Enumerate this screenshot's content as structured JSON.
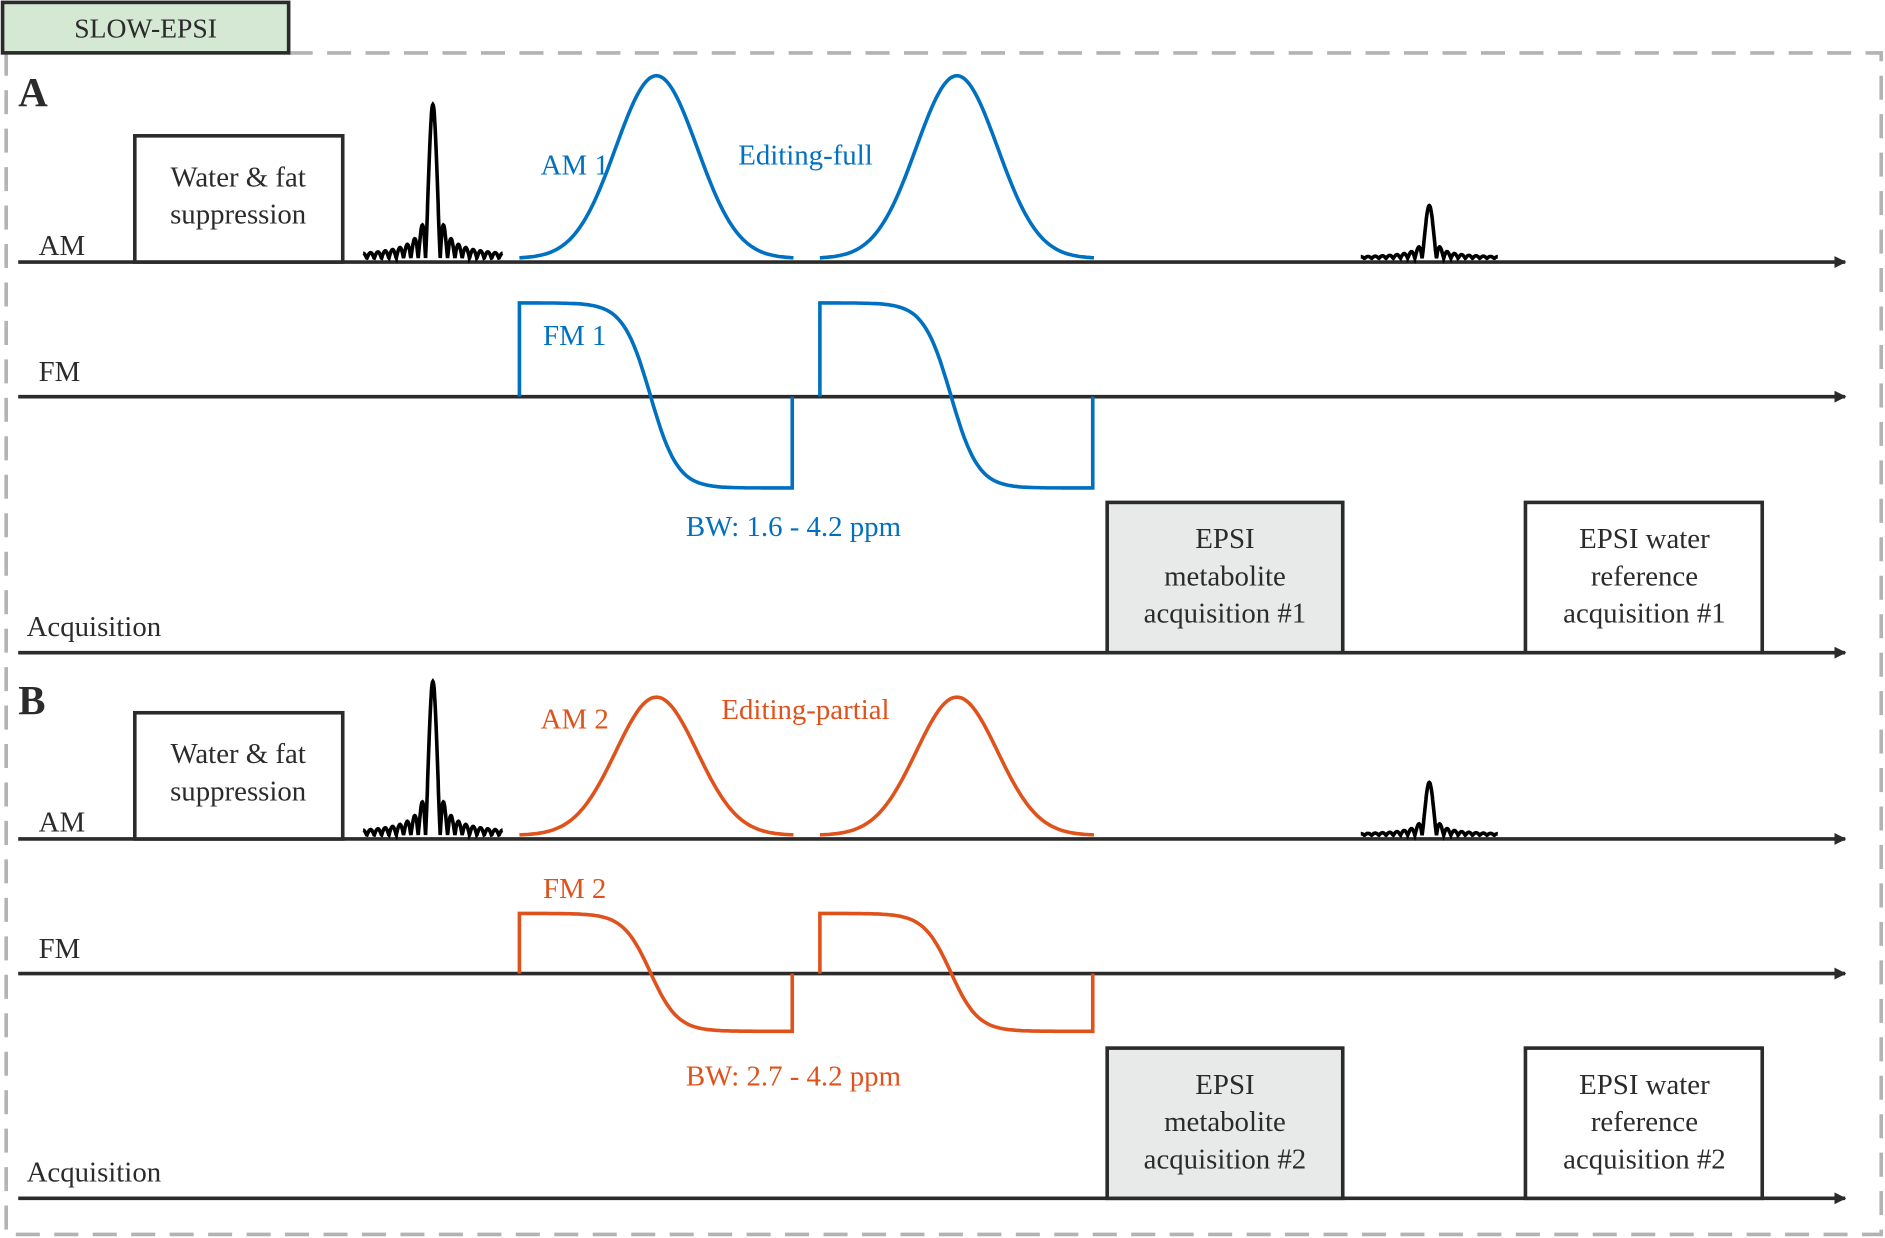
{
  "title": "SLOW-EPSI",
  "colors": {
    "title_fill": "#d5e8d4",
    "editing_full": "#0070c0",
    "editing_partial": "#e0521b",
    "black": "#000000",
    "metabolite_box": "#e8eaea",
    "border": "#b3b3b3"
  },
  "panels": [
    {
      "label": "A",
      "row_labels": {
        "am": "AM",
        "fm": "FM",
        "acq": "Acquisition"
      },
      "suppression_box": [
        "Water & fat",
        "suppression"
      ],
      "am_label": "AM 1",
      "editing_label": "Editing-full",
      "fm_label": "FM 1",
      "bw_label": "BW: 1.6 - 4.2 ppm",
      "metabolite_box": [
        "EPSI",
        "metabolite",
        "acquisition #1"
      ],
      "water_box": [
        "EPSI water",
        "reference",
        "acquisition #1"
      ]
    },
    {
      "label": "B",
      "row_labels": {
        "am": "AM",
        "fm": "FM",
        "acq": "Acquisition"
      },
      "suppression_box": [
        "Water & fat",
        "suppression"
      ],
      "am_label": "AM 2",
      "editing_label": "Editing-partial",
      "fm_label": "FM 2",
      "bw_label": "BW: 2.7 - 4.2 ppm",
      "metabolite_box": [
        "EPSI",
        "metabolite",
        "acquisition #2"
      ],
      "water_box": [
        "EPSI water",
        "reference",
        "acquisition #2"
      ]
    }
  ]
}
